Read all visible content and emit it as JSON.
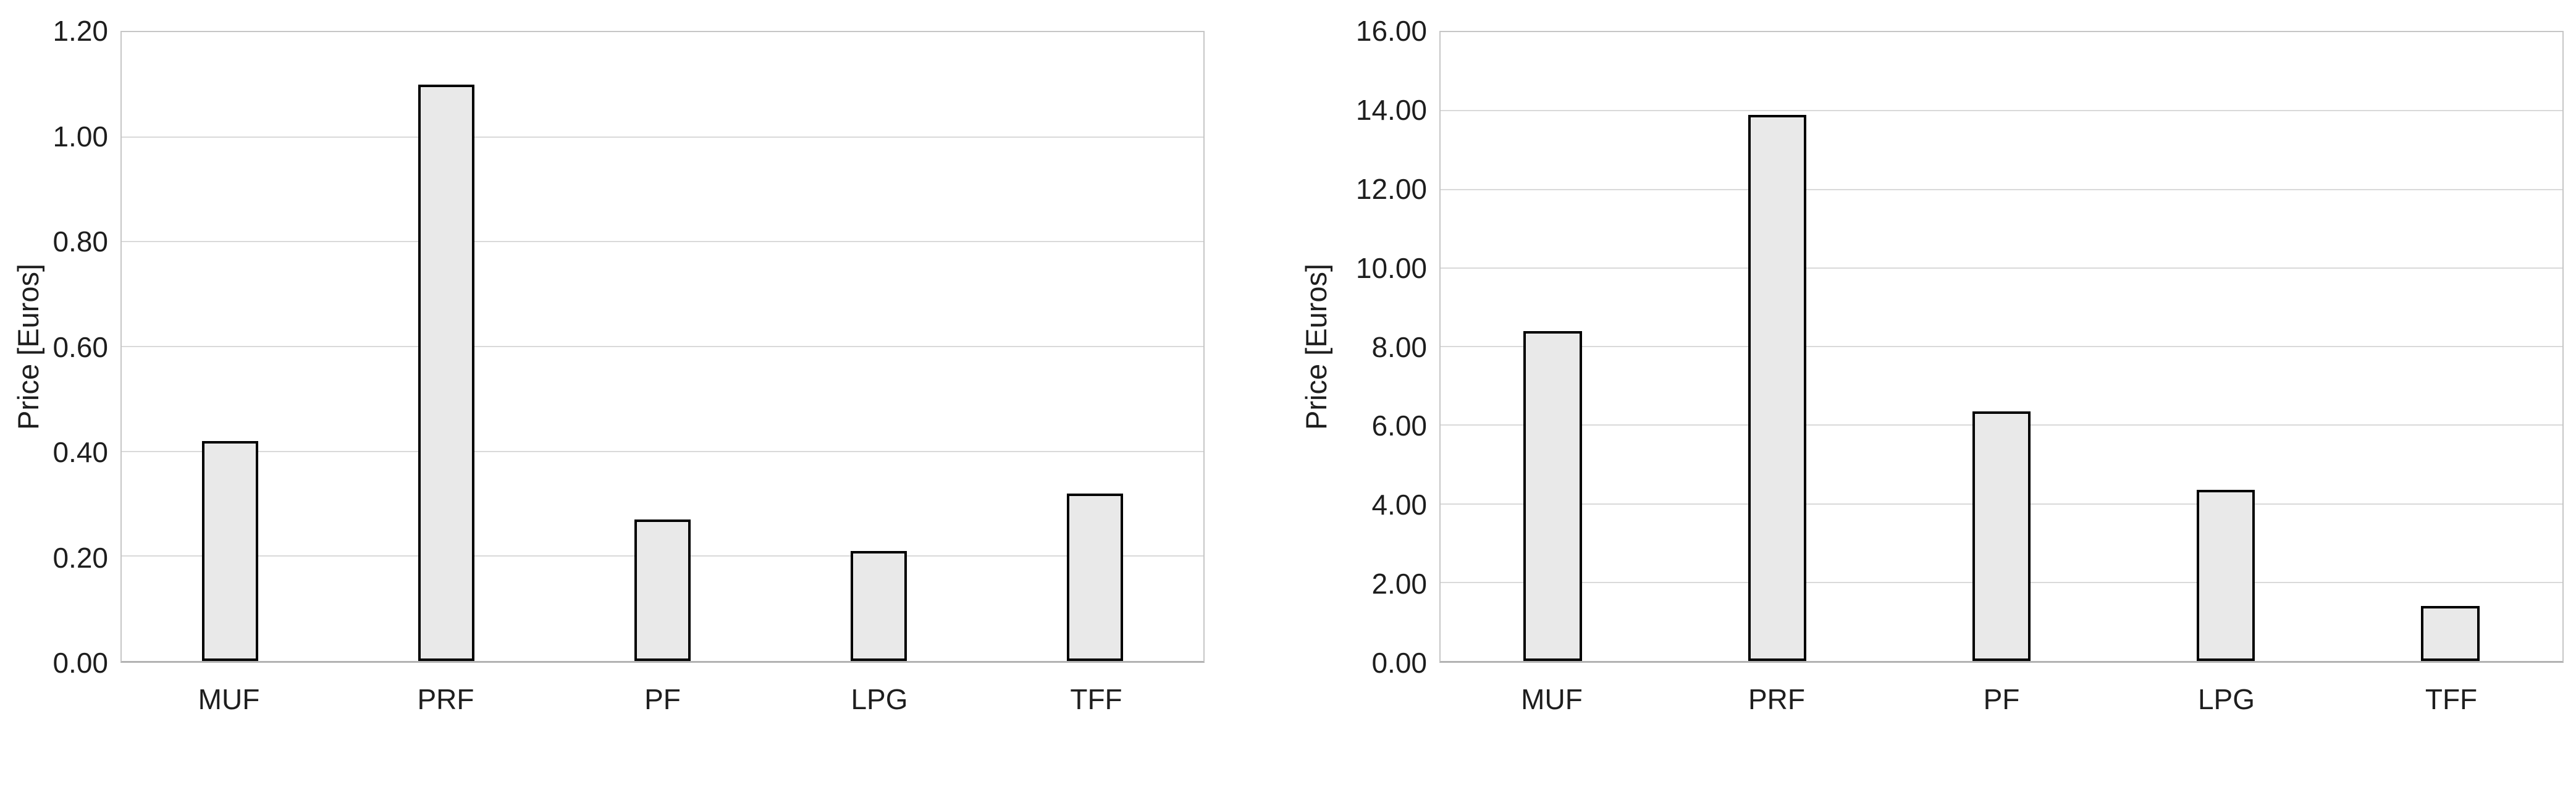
{
  "page": {
    "background": "#ffffff",
    "text_color": "#1e1e1e"
  },
  "styles": {
    "bar_fill": "#e9e9e9",
    "bar_border": "#000000",
    "gridline_color": "#d9d9d9",
    "plot_border_color": "#c6c6c6",
    "axis_line_color": "#b2b2b2"
  },
  "chart_data": [
    {
      "type": "bar",
      "title": "",
      "ylabel": "Price [Euros]",
      "xlabel": "",
      "categories": [
        "MUF",
        "PRF",
        "PF",
        "LPG",
        "TFF"
      ],
      "values": [
        0.42,
        1.1,
        0.27,
        0.21,
        0.32
      ],
      "ylim": [
        0,
        1.2
      ],
      "ytick_step": 0.2,
      "ytick_labels": [
        "0.00",
        "0.20",
        "0.40",
        "0.60",
        "0.80",
        "1.00",
        "1.20"
      ],
      "grid": true,
      "legend": "none"
    },
    {
      "type": "bar",
      "title": "",
      "ylabel": "Price [Euros]",
      "xlabel": "",
      "categories": [
        "MUF",
        "PRF",
        "PF",
        "LPG",
        "TFF"
      ],
      "values": [
        8.4,
        13.9,
        6.35,
        4.35,
        1.4
      ],
      "ylim": [
        0,
        16.0
      ],
      "ytick_step": 2.0,
      "ytick_labels": [
        "0.00",
        "2.00",
        "4.00",
        "6.00",
        "8.00",
        "10.00",
        "12.00",
        "14.00",
        "16.00"
      ],
      "grid": true,
      "legend": "none"
    }
  ]
}
